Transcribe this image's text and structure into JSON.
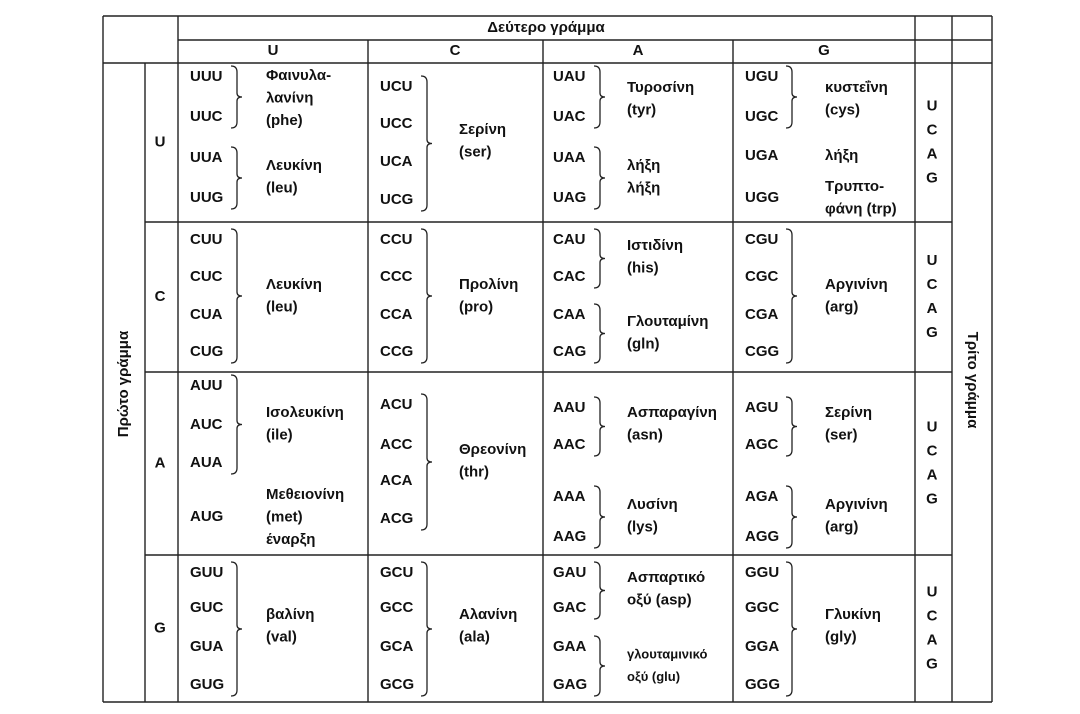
{
  "header": {
    "second_letter": "Δεύτερο γράμμα",
    "first_letter": "Πρώτο γράμμα",
    "third_letter": "Τρίτο γράμμα",
    "second_columns": [
      "U",
      "C",
      "A",
      "G"
    ]
  },
  "rows": [
    {
      "first": "U",
      "third": [
        "U",
        "C",
        "A",
        "G"
      ],
      "cells": [
        {
          "groups": [
            {
              "codons": [
                "UUU",
                "UUC"
              ],
              "label": [
                "Φαινυλα-",
                "λανίνη",
                "(phe)"
              ]
            },
            {
              "codons": [
                "UUA",
                "UUG"
              ],
              "label": [
                "Λευκίνη",
                "(leu)"
              ]
            }
          ]
        },
        {
          "groups": [
            {
              "codons": [
                "UCU",
                "UCC",
                "UCA",
                "UCG"
              ],
              "label": [
                "Σερίνη",
                "(ser)"
              ]
            }
          ]
        },
        {
          "groups": [
            {
              "codons": [
                "UAU",
                "UAC"
              ],
              "label": [
                "Τυροσίνη",
                "(tyr)"
              ]
            },
            {
              "codons": [
                "UAA",
                "UAG"
              ],
              "label": [
                "λήξη",
                "λήξη"
              ]
            }
          ]
        },
        {
          "groups": [
            {
              "codons": [
                "UGU",
                "UGC"
              ],
              "label": [
                "κυστεΐνη",
                "(cys)"
              ]
            },
            {
              "codons": [
                "UGA"
              ],
              "label": [
                "λήξη"
              ]
            },
            {
              "codons": [
                "UGG"
              ],
              "label": [
                "Τρυπτο-",
                "φάνη (trp)"
              ]
            }
          ]
        }
      ]
    },
    {
      "first": "C",
      "third": [
        "U",
        "C",
        "A",
        "G"
      ],
      "cells": [
        {
          "groups": [
            {
              "codons": [
                "CUU",
                "CUC",
                "CUA",
                "CUG"
              ],
              "label": [
                "Λευκίνη",
                "(leu)"
              ]
            }
          ]
        },
        {
          "groups": [
            {
              "codons": [
                "CCU",
                "CCC",
                "CCA",
                "CCG"
              ],
              "label": [
                "Προλίνη",
                "(pro)"
              ]
            }
          ]
        },
        {
          "groups": [
            {
              "codons": [
                "CAU",
                "CAC"
              ],
              "label": [
                "Ιστιδίνη",
                "(his)"
              ]
            },
            {
              "codons": [
                "CAA",
                "CAG"
              ],
              "label": [
                "Γλουταμίνη",
                "(gln)"
              ]
            }
          ]
        },
        {
          "groups": [
            {
              "codons": [
                "CGU",
                "CGC",
                "CGA",
                "CGG"
              ],
              "label": [
                "Αργινίνη",
                "(arg)"
              ]
            }
          ]
        }
      ]
    },
    {
      "first": "A",
      "third": [
        "U",
        "C",
        "A",
        "G"
      ],
      "cells": [
        {
          "groups": [
            {
              "codons": [
                "AUU",
                "AUC",
                "AUA"
              ],
              "label": [
                "Ισολευκίνη",
                "(ile)"
              ]
            },
            {
              "codons": [
                "AUG"
              ],
              "label": [
                "Μεθειονίνη",
                "(met)",
                "έναρξη"
              ]
            }
          ]
        },
        {
          "groups": [
            {
              "codons": [
                "ACU",
                "ACC",
                "ACA",
                "ACG"
              ],
              "label": [
                "Θρεονίνη",
                "(thr)"
              ]
            }
          ]
        },
        {
          "groups": [
            {
              "codons": [
                "AAU",
                "AAC"
              ],
              "label": [
                "Ασπαραγίνη",
                "(asn)"
              ]
            },
            {
              "codons": [
                "AAA",
                "AAG"
              ],
              "label": [
                "Λυσίνη",
                "(lys)"
              ]
            }
          ]
        },
        {
          "groups": [
            {
              "codons": [
                "AGU",
                "AGC"
              ],
              "label": [
                "Σερίνη",
                "(ser)"
              ]
            },
            {
              "codons": [
                "AGA",
                "AGG"
              ],
              "label": [
                "Αργινίνη",
                "(arg)"
              ]
            }
          ]
        }
      ]
    },
    {
      "first": "G",
      "third": [
        "U",
        "C",
        "A",
        "G"
      ],
      "cells": [
        {
          "groups": [
            {
              "codons": [
                "GUU",
                "GUC",
                "GUA",
                "GUG"
              ],
              "label": [
                "βαλίνη",
                "(val)"
              ]
            }
          ]
        },
        {
          "groups": [
            {
              "codons": [
                "GCU",
                "GCC",
                "GCA",
                "GCG"
              ],
              "label": [
                "Αλανίνη",
                "(ala)"
              ]
            }
          ]
        },
        {
          "groups": [
            {
              "codons": [
                "GAU",
                "GAC"
              ],
              "label": [
                "Ασπαρτικό",
                "οξύ (asp)"
              ]
            },
            {
              "codons": [
                "GAA",
                "GAG"
              ],
              "label": [
                "γλουταμινικό",
                "οξύ (glu)"
              ]
            }
          ]
        },
        {
          "groups": [
            {
              "codons": [
                "GGU",
                "GGC",
                "GGA",
                "GGG"
              ],
              "label": [
                "Γλυκίνη",
                "(gly)"
              ]
            }
          ]
        }
      ]
    }
  ]
}
